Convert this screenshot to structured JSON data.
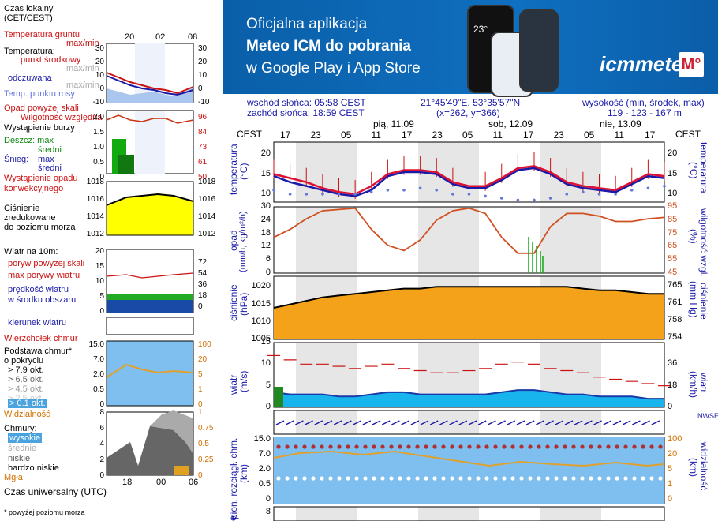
{
  "banner": {
    "line1": "Oficjalna aplikacja",
    "line2": "Meteo ICM do pobrania",
    "line3": "w Google Play i App Store",
    "logo": "icmmeteo",
    "logo_badge": "M°",
    "phone_temp": "23°"
  },
  "legend": {
    "time_local": "Czas lokalny",
    "time_local_zone": "(CET/CEST)",
    "top_ticks": [
      "20",
      "02",
      "08"
    ],
    "soil_temp": "Temperatura gruntu",
    "soil_maxmin": "max/min",
    "temp": "Temperatura:",
    "mid_point": "punkt środkowy",
    "max_min": "max/min",
    "feels": "odczuwana",
    "feels_maxmin": "max/min",
    "dew": "Temp. punktu rosy",
    "temp_ticks": [
      "30",
      "20",
      "10",
      "0",
      "-10"
    ],
    "rain_above": "Opad powyżej skali",
    "humidity": "Wilgotność względna",
    "storm": "Wystąpienie burzy",
    "rain": "Deszcz: max",
    "rain_avg": "średni",
    "snow": "Śnieg:",
    "snow_max": "max",
    "snow_avg": "średni",
    "precip_conv": "Wystąpienie opadu",
    "precip_conv2": "konwekcyjnego",
    "precip_ticks": [
      "2.0",
      "1.5",
      "1.0",
      "0.5",
      "0"
    ],
    "hum_ticks": [
      "96",
      "84",
      "73",
      "61",
      "50"
    ],
    "pressure": "Ciśnienie",
    "pressure2": "zredukowane",
    "pressure3": "do poziomu morza",
    "press_ticks": [
      "1018",
      "1016",
      "1014",
      "1012"
    ],
    "wind": "Wiatr na 10m:",
    "gust_above": "poryw powyżej skali",
    "gust_max": "max porywy wiatru",
    "wind_avg": "prędkość wiatru",
    "wind_avg2": "w środku obszaru",
    "wind_ticks": [
      "20",
      "15",
      "10",
      "5",
      "0"
    ],
    "wind_kmh_ticks": [
      "72",
      "54",
      "36",
      "18",
      "0"
    ],
    "wind_dir": "kierunek wiatru",
    "cloud_top": "Wierzchołek chmur",
    "cloud_base": "Podstawa chmur*",
    "cloud_base2": "o pokryciu",
    "okt1": "> 7.9 okt.",
    "okt2": "> 6.5 okt.",
    "okt3": "> 4.5 okt.",
    "okt4": "> 2.5 okt.",
    "okt5": "> 0.1 okt.",
    "cloud_ticks": [
      "15.0",
      "7.0",
      "2.0",
      "0.5",
      "0"
    ],
    "vis_ticks": [
      "100",
      "20",
      "5",
      "1",
      "0"
    ],
    "visibility": "Widzialność",
    "clouds": "Chmury:",
    "high": "wysokie",
    "mid": "średnie",
    "low": "niskie",
    "very_low": "bardzo niskie",
    "fog": "Mgła",
    "cl_ticks": [
      "8",
      "6",
      "4",
      "2",
      "0"
    ],
    "cl_frac": [
      "1",
      "0.75",
      "0.5",
      "0.25",
      "0"
    ],
    "utc": "Czas uniwersalny (UTC)",
    "bottom_ticks": [
      "18",
      "00",
      "06"
    ],
    "footnote": "* powyżej poziomu morza"
  },
  "header": {
    "sunrise": "wschód słońca: 05:58 CEST",
    "sunset": "zachód słońca: 18:59 CEST",
    "coords": "21°45'49\"E, 53°35'57\"N",
    "grid": "(x=262,  y=366)",
    "height_label": "wysokość (min, środek, max)",
    "height_value": "119 - 123 - 167 m",
    "tz_left": "CEST",
    "tz_right": "CEST",
    "days": [
      "pią, 11.09",
      "sob, 12.09",
      "nie, 13.09"
    ],
    "hours": [
      "17",
      "23",
      "05",
      "11",
      "17",
      "23",
      "05",
      "11",
      "17",
      "23",
      "05",
      "11",
      "17"
    ]
  },
  "panels": {
    "temp_label": "temperatura",
    "temp_unit": "(°C)",
    "temp_ticks": [
      "20",
      "15",
      "10"
    ],
    "precip_label": "opad",
    "precip_unit": "(mm/h, kg/m²/h)",
    "precip_ticks": [
      "30",
      "24",
      "18",
      "12",
      "6",
      "0"
    ],
    "hum_label": "wilgotność wzgl.",
    "hum_unit": "(%)",
    "hum_ticks": [
      "95",
      "85",
      "75",
      "65",
      "55",
      "45"
    ],
    "press_label": "ciśnienie",
    "press_unit": "(hPa)",
    "press_ticks": [
      "1020",
      "1015",
      "1010",
      "1005"
    ],
    "press_mm_label": "ciśnienie",
    "press_mm_unit": "(mm Hg)",
    "press_mm_ticks": [
      "765",
      "761",
      "758",
      "754"
    ],
    "wind_label": "wiatr",
    "wind_unit": "(m/s)",
    "wind_ticks": [
      "15",
      "10",
      "5",
      "0"
    ],
    "wind_kmh_unit": "(km/h)",
    "wind_kmh_ticks": [
      "36",
      "18",
      "0"
    ],
    "compass": "NWSE",
    "cloud_label": "pion. rozciągł. chm.",
    "cloud_unit": "(km)",
    "cloud_ticks": [
      "15.0",
      "7.0",
      "2.0",
      "0.5",
      "0"
    ],
    "vis_label": "widzialność",
    "vis_unit": "(km)",
    "vis_ticks": [
      "100",
      "20",
      "5",
      "1",
      "0"
    ],
    "bottom_tick": "8",
    "bottom_left": "e"
  },
  "chart_data": [
    {
      "type": "line",
      "name": "temperatura",
      "x": [
        "17",
        "20",
        "23",
        "02",
        "05",
        "08",
        "11",
        "14",
        "17",
        "20",
        "23",
        "02",
        "05",
        "08",
        "11",
        "14",
        "17",
        "20",
        "23",
        "02",
        "05",
        "08",
        "11",
        "14",
        "17"
      ],
      "series": [
        {
          "name": "punkt środkowy",
          "values": [
            15,
            14,
            13,
            11.5,
            10.5,
            10,
            12,
            15,
            16,
            16,
            15.5,
            13,
            12,
            12,
            14,
            16.5,
            17,
            15.5,
            13,
            12,
            11.5,
            11,
            13,
            15,
            14.5
          ]
        },
        {
          "name": "odczuwana",
          "values": [
            14.5,
            13,
            12,
            11,
            10,
            9.5,
            11,
            14.5,
            15.5,
            15.5,
            15,
            12.5,
            11.5,
            11.5,
            13.5,
            16,
            16.5,
            15,
            12.5,
            11.5,
            11,
            10.5,
            12.5,
            14.5,
            14
          ]
        },
        {
          "name": "Temp. punktu rosy",
          "values": [
            11,
            10,
            10,
            10,
            10,
            10,
            10.5,
            11,
            11,
            11.5,
            11,
            10,
            10,
            9.5,
            9,
            8.5,
            8.5,
            9,
            10,
            10.5,
            10,
            10,
            11,
            11.5,
            12
          ]
        }
      ],
      "ylim": [
        8,
        23
      ]
    },
    {
      "type": "line",
      "name": "wilgotność",
      "x": [
        "17",
        "20",
        "23",
        "02",
        "05",
        "08",
        "11",
        "14",
        "17",
        "20",
        "23",
        "02",
        "05",
        "08",
        "11",
        "14",
        "17",
        "20",
        "23",
        "02",
        "05",
        "08",
        "11",
        "14",
        "17"
      ],
      "values": [
        72,
        78,
        86,
        92,
        93,
        94,
        78,
        66,
        62,
        70,
        85,
        92,
        94,
        90,
        72,
        60,
        60,
        80,
        90,
        90,
        88,
        84,
        84,
        86,
        87
      ],
      "ylim": [
        45,
        95
      ]
    },
    {
      "type": "area",
      "name": "ciśnienie",
      "x": [
        "17",
        "20",
        "23",
        "02",
        "05",
        "08",
        "11",
        "14",
        "17",
        "20",
        "23",
        "02",
        "05",
        "08",
        "11",
        "14",
        "17",
        "20",
        "23",
        "02",
        "05",
        "08",
        "11",
        "14",
        "17"
      ],
      "values": [
        1014,
        1015,
        1016,
        1017,
        1017.5,
        1018,
        1018.5,
        1019,
        1019.5,
        1019.5,
        1020,
        1020,
        1020,
        1020,
        1020,
        1020,
        1020,
        1020,
        1020,
        1019.5,
        1019,
        1019,
        1018.5,
        1018,
        1018
      ],
      "ylim": [
        1005,
        1023
      ]
    },
    {
      "type": "line",
      "name": "wiatr",
      "x": [
        "17",
        "20",
        "23",
        "02",
        "05",
        "08",
        "11",
        "14",
        "17",
        "20",
        "23",
        "02",
        "05",
        "08",
        "11",
        "14",
        "17",
        "20",
        "23",
        "02",
        "05",
        "08",
        "11",
        "14",
        "17"
      ],
      "series": [
        {
          "name": "max porywy wiatru",
          "values": [
            12,
            11,
            10,
            10,
            9.5,
            9,
            9.5,
            10,
            9,
            8.5,
            8,
            8,
            8.5,
            9,
            10,
            10.5,
            10,
            9,
            8.5,
            8,
            7,
            6.5,
            6,
            5.5,
            5
          ]
        },
        {
          "name": "prędkość wiatru",
          "values": [
            3.5,
            3,
            3,
            3,
            2.5,
            2.5,
            3,
            3.5,
            3.5,
            3,
            3,
            3,
            3,
            3,
            3.5,
            4,
            4,
            3.5,
            3,
            3,
            2.5,
            2.5,
            2.5,
            2,
            2
          ]
        }
      ],
      "ylim": [
        0,
        15
      ]
    }
  ]
}
